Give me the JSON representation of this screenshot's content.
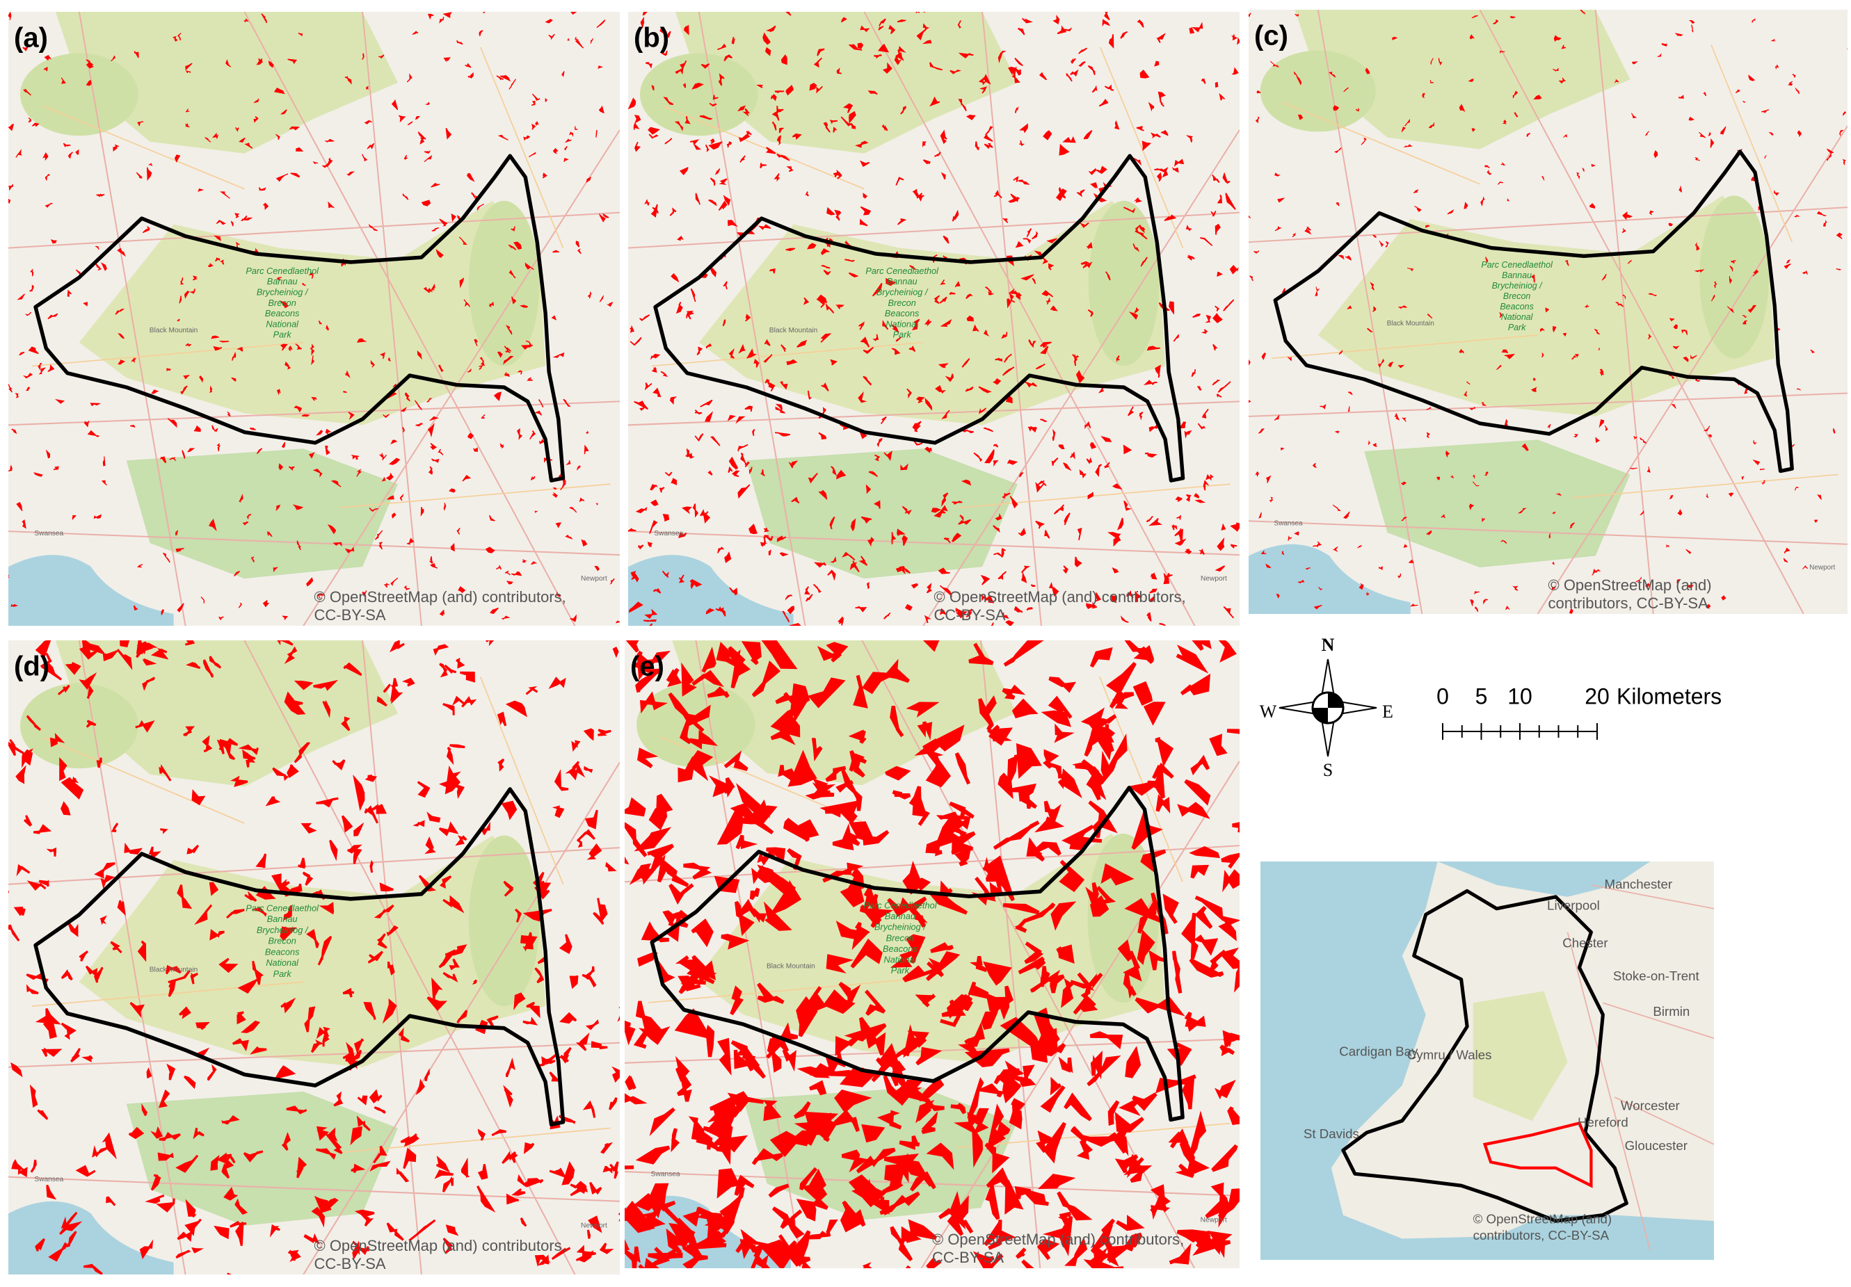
{
  "panels": [
    {
      "label": "(a)",
      "attribution": [
        "© OpenStreetMap (and) contributors,",
        "CC-BY-SA"
      ]
    },
    {
      "label": "(b)",
      "attribution": [
        "© OpenStreetMap (and) contributors,",
        "CC-BY-SA"
      ]
    },
    {
      "label": "(c)",
      "attribution": [
        "© OpenStreetMap (and)",
        "contributors, CC-BY-SA"
      ]
    },
    {
      "label": "(d)",
      "attribution": [
        "© OpenStreetMap (and) contributors,",
        "CC-BY-SA"
      ]
    },
    {
      "label": "(e)",
      "attribution": [
        "© OpenStreetMap (and) contributors,",
        "CC-BY-SA"
      ]
    }
  ],
  "map_labels": {
    "park": [
      "Parc Cenedlaethol",
      "Bannau",
      "Brycheiniog /",
      "Brecon",
      "Beacons",
      "National",
      "Park"
    ],
    "black_mountain": "Black Mountain",
    "swansea": "Swansea",
    "newport": "Newport"
  },
  "compass": {
    "n": "N",
    "s": "S",
    "e": "E",
    "w": "W"
  },
  "scale_bar": {
    "ticks": [
      0,
      5,
      10,
      20
    ],
    "unit": "Kilometers"
  },
  "inset": {
    "labels": [
      "Manchester",
      "Liverpool",
      "Chester",
      "Stoke-on-Trent",
      "Birmin",
      "Cardigan Bay",
      "Cymru / Wales",
      "St Davids",
      "Hereford",
      "Worcester",
      "Gloucester"
    ],
    "attribution": [
      "© OpenStreetMap (and)",
      "contributors, CC-BY-SA"
    ]
  }
}
